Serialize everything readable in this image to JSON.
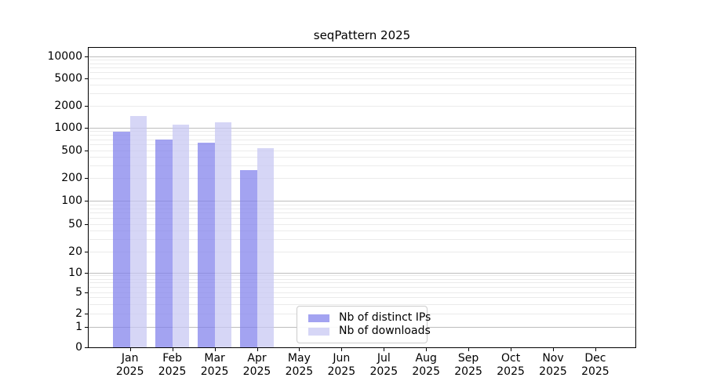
{
  "title": "seqPattern 2025",
  "chart_data": {
    "type": "bar",
    "title": "seqPattern 2025",
    "x_year": "2025",
    "categories": [
      "Jan",
      "Feb",
      "Mar",
      "Apr",
      "May",
      "Jun",
      "Jul",
      "Aug",
      "Sep",
      "Oct",
      "Nov",
      "Dec"
    ],
    "series": [
      {
        "name": "Nb of distinct IPs",
        "key": "distinct-ips",
        "color": "rgba(128,128,235,0.72)",
        "values": [
          890,
          690,
          630,
          260,
          null,
          null,
          null,
          null,
          null,
          null,
          null,
          null
        ]
      },
      {
        "name": "Nb of downloads",
        "key": "downloads",
        "color": "rgba(198,198,242,0.72)",
        "values": [
          1450,
          1100,
          1200,
          530,
          null,
          null,
          null,
          null,
          null,
          null,
          null,
          null
        ]
      }
    ],
    "y_ticks": [
      0,
      1,
      2,
      5,
      10,
      20,
      50,
      100,
      200,
      500,
      1000,
      2000,
      5000,
      10000
    ],
    "y_scale": "symlog",
    "ylim": [
      0,
      13000
    ],
    "grid": "horizontal, major gray at powers of 10, faint minor lines",
    "legend_position": "lower center inside plot",
    "axis_color": "#000000",
    "major_grid_color": "#bdbdbd",
    "minor_grid_color": "#ebebeb"
  }
}
